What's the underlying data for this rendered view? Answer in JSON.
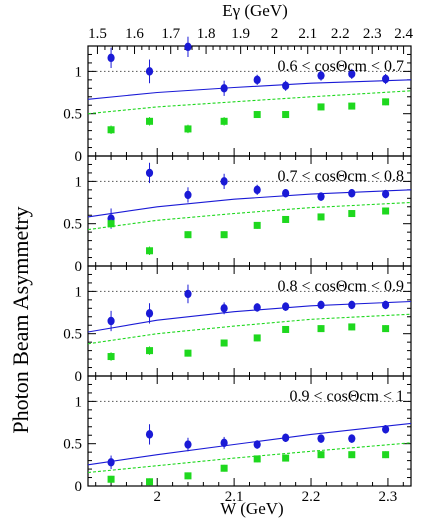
{
  "figure": {
    "ylabel": "Photon Beam Asymmetry",
    "xlabel_bottom": "W (GeV)",
    "xlabel_top": "Eγ (GeV)"
  },
  "top_axis": {
    "ticks": [
      1.5,
      1.6,
      1.7,
      1.8,
      1.9,
      2.0,
      2.1,
      2.2,
      2.3,
      2.4
    ],
    "labels": [
      "1.5",
      "1.6",
      "1.7",
      "1.8",
      "1.9",
      "2",
      "2.1",
      "2.2",
      "2.3",
      "2.4"
    ]
  },
  "bottom_axis": {
    "ticks": [
      2.0,
      2.1,
      2.2,
      2.3
    ],
    "labels": [
      "2",
      "2.1",
      "2.2",
      "2.3"
    ],
    "xlim": [
      1.91,
      2.33
    ]
  },
  "colors": {
    "blue": "#1a1ad6",
    "green": "#1ed81e",
    "reference_line": "#555555"
  },
  "chart_data": [
    {
      "type": "scatter",
      "title": "0.6 < cosΘcm < 0.7",
      "ylim": [
        0,
        1.3
      ],
      "yticks": [
        0,
        0.5,
        1
      ],
      "ytick_labels": [
        "0",
        "0.5",
        "1"
      ],
      "reference_line": 1,
      "x": [
        1.94,
        1.99,
        2.04,
        2.087,
        2.13,
        2.167,
        2.213,
        2.253,
        2.297
      ],
      "series": [
        {
          "values": [
            1.16,
            1.0,
            1.29,
            0.8,
            0.9,
            0.83,
            0.95,
            0.97,
            0.91
          ],
          "errors": [
            0.12,
            0.14,
            0.12,
            0.09,
            0.06,
            0.06,
            0.06,
            0.06,
            0.06
          ],
          "marker": "circle"
        },
        {
          "values": [
            0.31,
            0.41,
            0.32,
            0.41,
            0.49,
            0.49,
            0.58,
            0.59,
            0.64
          ],
          "errors": [
            0.05,
            0.05,
            0.05,
            0.05,
            0.04,
            0.04,
            0.04,
            0.04,
            0.04
          ],
          "marker": "square"
        }
      ],
      "curves": {
        "solid": [
          [
            1.91,
            0.67
          ],
          [
            2.0,
            0.75
          ],
          [
            2.1,
            0.81
          ],
          [
            2.2,
            0.86
          ],
          [
            2.33,
            0.9
          ]
        ],
        "dashed": [
          [
            1.91,
            0.5
          ],
          [
            2.0,
            0.58
          ],
          [
            2.1,
            0.64
          ],
          [
            2.2,
            0.7
          ],
          [
            2.33,
            0.77
          ]
        ]
      }
    },
    {
      "type": "scatter",
      "title": "0.7 < cosΘcm < 0.8",
      "ylim": [
        0,
        1.3
      ],
      "yticks": [
        0,
        0.5,
        1
      ],
      "ytick_labels": [
        "0",
        "0.5",
        "1"
      ],
      "reference_line": 1,
      "x": [
        1.94,
        1.99,
        2.04,
        2.087,
        2.13,
        2.167,
        2.213,
        2.253,
        2.297
      ],
      "series": [
        {
          "values": [
            0.56,
            1.1,
            0.84,
            1.0,
            0.9,
            0.86,
            0.82,
            0.86,
            0.85
          ],
          "errors": [
            0.12,
            0.12,
            0.09,
            0.09,
            0.06,
            0.05,
            0.05,
            0.05,
            0.05
          ],
          "marker": "circle"
        },
        {
          "values": [
            0.5,
            0.18,
            0.37,
            0.37,
            0.48,
            0.55,
            0.58,
            0.62,
            0.65
          ],
          "errors": [
            0.05,
            0.05,
            0.04,
            0.04,
            0.04,
            0.04,
            0.04,
            0.04,
            0.04
          ],
          "marker": "square"
        }
      ],
      "curves": {
        "solid": [
          [
            1.91,
            0.58
          ],
          [
            2.0,
            0.7
          ],
          [
            2.1,
            0.79
          ],
          [
            2.2,
            0.85
          ],
          [
            2.33,
            0.9
          ]
        ],
        "dashed": [
          [
            1.91,
            0.43
          ],
          [
            2.0,
            0.54
          ],
          [
            2.1,
            0.62
          ],
          [
            2.2,
            0.69
          ],
          [
            2.33,
            0.75
          ]
        ]
      }
    },
    {
      "type": "scatter",
      "title": "0.8 < cosΘcm < 0.9",
      "ylim": [
        0,
        1.3
      ],
      "yticks": [
        0,
        0.5,
        1
      ],
      "ytick_labels": [
        "0",
        "0.5",
        "1"
      ],
      "reference_line": 1,
      "x": [
        1.94,
        1.99,
        2.04,
        2.087,
        2.13,
        2.167,
        2.213,
        2.253,
        2.297
      ],
      "series": [
        {
          "values": [
            0.65,
            0.74,
            0.97,
            0.8,
            0.81,
            0.82,
            0.84,
            0.84,
            0.84
          ],
          "errors": [
            0.12,
            0.12,
            0.11,
            0.07,
            0.05,
            0.05,
            0.05,
            0.05,
            0.05
          ],
          "marker": "circle"
        },
        {
          "values": [
            0.23,
            0.3,
            0.27,
            0.39,
            0.45,
            0.55,
            0.56,
            0.58,
            0.56
          ],
          "errors": [
            0.05,
            0.05,
            0.04,
            0.04,
            0.04,
            0.04,
            0.04,
            0.04,
            0.04
          ],
          "marker": "square"
        }
      ],
      "curves": {
        "solid": [
          [
            1.91,
            0.52
          ],
          [
            2.0,
            0.66
          ],
          [
            2.1,
            0.76
          ],
          [
            2.2,
            0.83
          ],
          [
            2.33,
            0.88
          ]
        ],
        "dashed": [
          [
            1.91,
            0.38
          ],
          [
            2.0,
            0.5
          ],
          [
            2.1,
            0.59
          ],
          [
            2.2,
            0.67
          ],
          [
            2.33,
            0.73
          ]
        ]
      }
    },
    {
      "type": "scatter",
      "title": "0.9 < cosΘcm < 1",
      "ylim": [
        0,
        1.3
      ],
      "yticks": [
        0,
        0.5,
        1
      ],
      "ytick_labels": [
        "0",
        "0.5",
        "1"
      ],
      "reference_line": 1,
      "x": [
        1.94,
        1.99,
        2.04,
        2.087,
        2.13,
        2.167,
        2.213,
        2.253,
        2.297
      ],
      "series": [
        {
          "values": [
            0.28,
            0.61,
            0.49,
            0.51,
            0.49,
            0.57,
            0.56,
            0.56,
            0.67
          ],
          "errors": [
            0.08,
            0.12,
            0.08,
            0.07,
            0.05,
            0.05,
            0.05,
            0.05,
            0.05
          ],
          "marker": "circle"
        },
        {
          "values": [
            0.08,
            0.05,
            0.12,
            0.21,
            0.32,
            0.33,
            0.37,
            0.37,
            0.37
          ],
          "errors": [
            0.04,
            0.04,
            0.04,
            0.04,
            0.04,
            0.04,
            0.04,
            0.04,
            0.04
          ],
          "marker": "square"
        }
      ],
      "curves": {
        "solid": [
          [
            1.91,
            0.25
          ],
          [
            2.0,
            0.37
          ],
          [
            2.1,
            0.49
          ],
          [
            2.2,
            0.61
          ],
          [
            2.33,
            0.74
          ]
        ],
        "dashed": [
          [
            1.91,
            0.16
          ],
          [
            2.0,
            0.24
          ],
          [
            2.1,
            0.33
          ],
          [
            2.2,
            0.41
          ],
          [
            2.33,
            0.51
          ]
        ]
      }
    }
  ]
}
